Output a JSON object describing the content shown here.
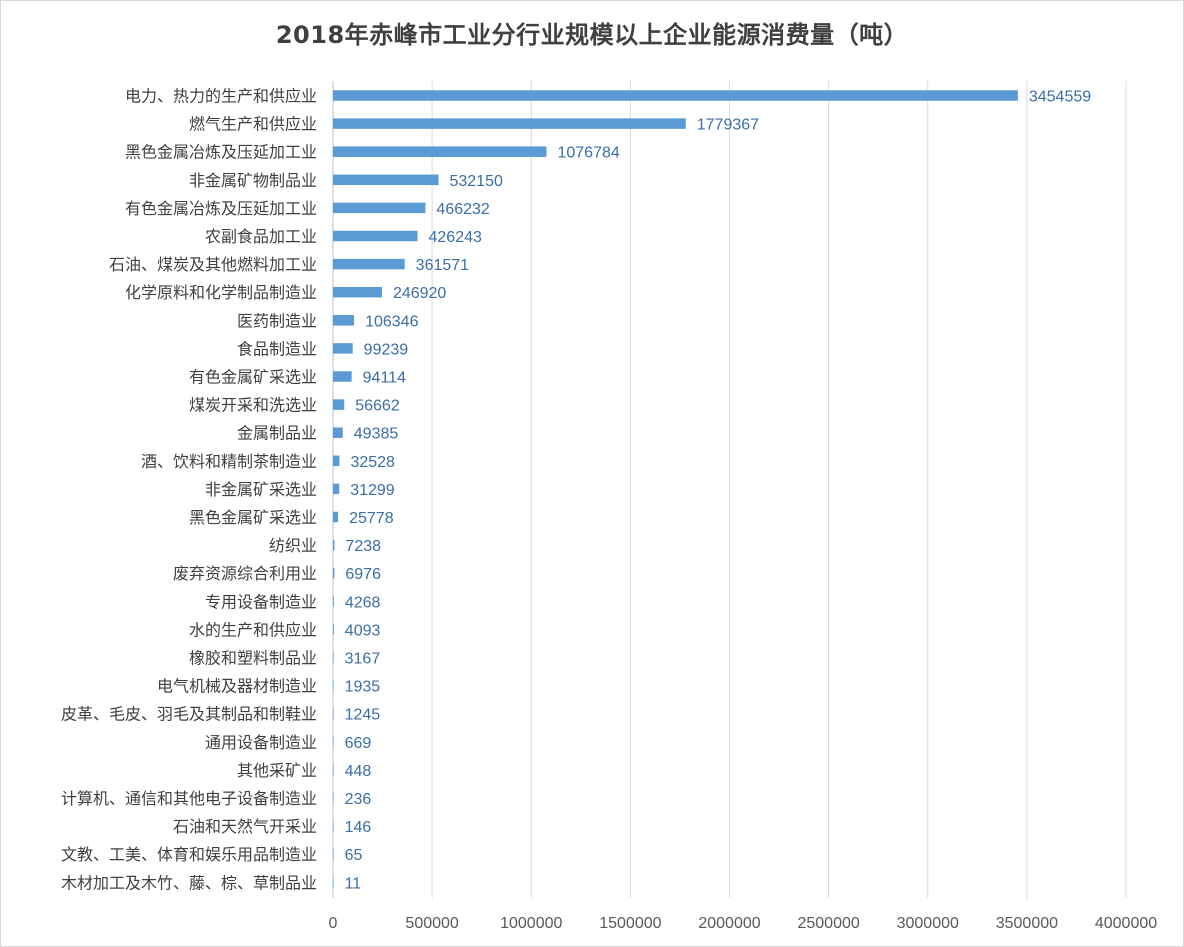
{
  "chart_data": {
    "type": "bar",
    "orientation": "horizontal",
    "title": "2018年赤峰市工业分行业规模以上企业能源消费量（吨）",
    "xlabel": "",
    "ylabel": "",
    "xlim": [
      0,
      4000000
    ],
    "ticks": [
      0,
      500000,
      1000000,
      1500000,
      2000000,
      2500000,
      3000000,
      3500000,
      4000000
    ],
    "grid": true,
    "legend": "none",
    "bar_color": "#5b9bd5",
    "categories": [
      "电力、热力的生产和供应业",
      "燃气生产和供应业",
      "黑色金属冶炼及压延加工业",
      "非金属矿物制品业",
      "有色金属冶炼及压延加工业",
      "农副食品加工业",
      "石油、煤炭及其他燃料加工业",
      "化学原料和化学制品制造业",
      "医药制造业",
      "食品制造业",
      "有色金属矿采选业",
      "煤炭开采和洗选业",
      "金属制品业",
      "酒、饮料和精制茶制造业",
      "非金属矿采选业",
      "黑色金属矿采选业",
      "纺织业",
      "废弃资源综合利用业",
      "专用设备制造业",
      "水的生产和供应业",
      "橡胶和塑料制品业",
      "电气机械及器材制造业",
      "皮革、毛皮、羽毛及其制品和制鞋业",
      "通用设备制造业",
      "其他采矿业",
      "计算机、通信和其他电子设备制造业",
      "石油和天然气开采业",
      "文教、工美、体育和娱乐用品制造业",
      "木材加工及木竹、藤、棕、草制品业"
    ],
    "values": [
      3454559,
      1779367,
      1076784,
      532150,
      466232,
      426243,
      361571,
      246920,
      106346,
      99239,
      94114,
      56662,
      49385,
      32528,
      31299,
      25778,
      7238,
      6976,
      4268,
      4093,
      3167,
      1935,
      1245,
      669,
      448,
      236,
      146,
      65,
      11
    ]
  }
}
